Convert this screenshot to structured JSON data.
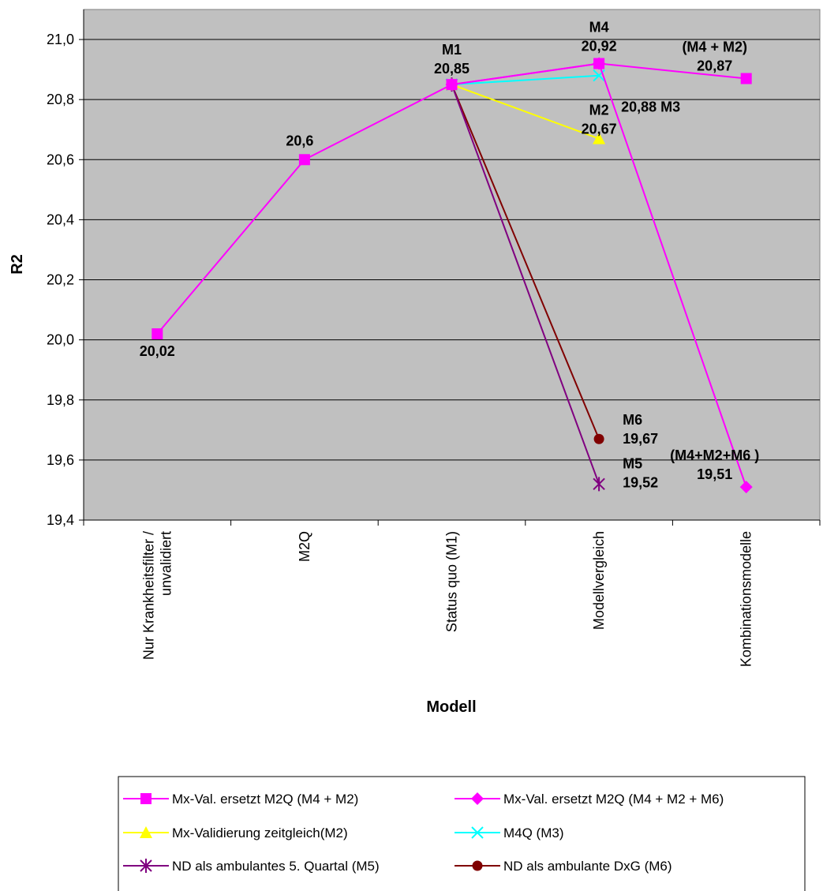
{
  "chart_data": {
    "type": "line",
    "title": "",
    "xlabel": "Modell",
    "ylabel": "R2",
    "categories": [
      [
        "Nur Krankheitsfilter /",
        "unvalidiert"
      ],
      [
        "M2Q"
      ],
      [
        "Status quo (M1)"
      ],
      [
        "Modellvergleich"
      ],
      [
        "Kombinationsmodelle"
      ]
    ],
    "ylim": [
      19.4,
      21.1
    ],
    "yticks": [
      "19,4",
      "19,6",
      "19,8",
      "20,0",
      "20,2",
      "20,4",
      "20,6",
      "20,8",
      "21,0"
    ],
    "ytick_values": [
      19.4,
      19.6,
      19.8,
      20.0,
      20.2,
      20.4,
      20.6,
      20.8,
      21.0
    ],
    "grid": "horizontal",
    "plot_background": "#c0c0c0",
    "legend_position": "bottom",
    "series": [
      {
        "name": "Mx-Val. ersetzt M2Q (M4 + M2)",
        "color": "#ff00ff",
        "marker": "square",
        "values": [
          20.02,
          20.6,
          20.85,
          20.92,
          20.87
        ]
      },
      {
        "name": "Mx-Val. ersetzt M2Q  (M4 + M2 + M6)",
        "color": "#ff00ff",
        "marker": "diamond",
        "values": [
          null,
          null,
          20.85,
          20.92,
          19.51
        ]
      },
      {
        "name": "Mx-Validierung zeitgleich(M2)",
        "color": "#ffff00",
        "marker": "triangle",
        "values": [
          null,
          null,
          20.85,
          20.67,
          null
        ]
      },
      {
        "name": "M4Q (M3)",
        "color": "#00ffff",
        "marker": "x",
        "values": [
          null,
          null,
          20.85,
          20.88,
          null
        ]
      },
      {
        "name": "ND als ambulantes 5. Quartal (M5)",
        "color": "#800080",
        "marker": "star",
        "values": [
          null,
          null,
          20.85,
          19.52,
          null
        ]
      },
      {
        "name": "ND als ambulante DxG (M6)",
        "color": "#800000",
        "marker": "circle",
        "values": [
          null,
          null,
          20.85,
          19.67,
          null
        ]
      }
    ],
    "annotations": [
      {
        "category": 0,
        "y": 20.02,
        "lines": [
          "20,02"
        ]
      },
      {
        "category": 1,
        "y": 20.6,
        "lines": [
          "20,6"
        ]
      },
      {
        "category": 2,
        "y": 20.85,
        "lines": [
          "M1",
          "20,85"
        ]
      },
      {
        "category": 3,
        "y": 20.92,
        "lines": [
          "M4",
          "20,92"
        ]
      },
      {
        "category": 3,
        "y": 20.88,
        "lines": [
          "20,88  M3"
        ]
      },
      {
        "category": 3,
        "y": 20.67,
        "lines": [
          "M2",
          "20,67"
        ]
      },
      {
        "category": 3,
        "y": 19.67,
        "lines": [
          "M6",
          "19,67"
        ]
      },
      {
        "category": 3,
        "y": 19.52,
        "lines": [
          "M5",
          "19,52"
        ]
      },
      {
        "category": 4,
        "y": 20.87,
        "lines": [
          "(M4 + M2)",
          "20,87"
        ]
      },
      {
        "category": 4,
        "y": 19.51,
        "lines": [
          "(M4+M2+M6 )",
          "19,51"
        ]
      }
    ]
  }
}
